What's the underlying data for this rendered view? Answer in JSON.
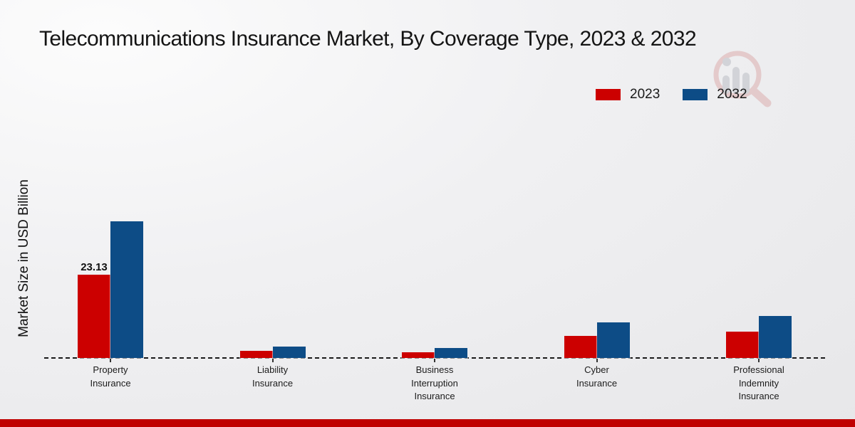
{
  "title": "Telecommunications Insurance Market, By Coverage Type, 2023 & 2032",
  "ylabel": "Market Size in USD Billion",
  "legend": {
    "items": [
      {
        "label": "2023",
        "color": "#cc0000"
      },
      {
        "label": "2032",
        "color": "#0d4c86"
      }
    ]
  },
  "annotation": {
    "text": "23.13",
    "category_index": 0,
    "series_index": 0
  },
  "colors": {
    "series_2023": "#cc0000",
    "series_2032": "#0d4c86",
    "footer_band": "#c00000",
    "baseline": "#1a1a1a"
  },
  "icons": [
    "magnifier-chart-watermark-logo"
  ],
  "chart_data": {
    "type": "bar",
    "title": "Telecommunications Insurance Market, By Coverage Type, 2023 & 2032",
    "categories": [
      "Property\nInsurance",
      "Liability\nInsurance",
      "Business\nInterruption\nInsurance",
      "Cyber\nInsurance",
      "Professional\nIndemnity\nInsurance"
    ],
    "series": [
      {
        "name": "2023",
        "color": "#cc0000",
        "values": [
          23.13,
          2.0,
          1.6,
          6.1,
          7.3
        ]
      },
      {
        "name": "2032",
        "color": "#0d4c86",
        "values": [
          38.0,
          3.2,
          2.7,
          9.8,
          11.6
        ]
      }
    ],
    "xlabel": "",
    "ylabel": "Market Size in USD Billion",
    "ylim": [
      0,
      70
    ],
    "grid": false,
    "y_axis_ticks_visible": false,
    "legend_position": "top-right",
    "baseline_style": "dashed",
    "data_labels": [
      {
        "series": "2023",
        "category": "Property\nInsurance",
        "value": 23.13
      }
    ]
  }
}
